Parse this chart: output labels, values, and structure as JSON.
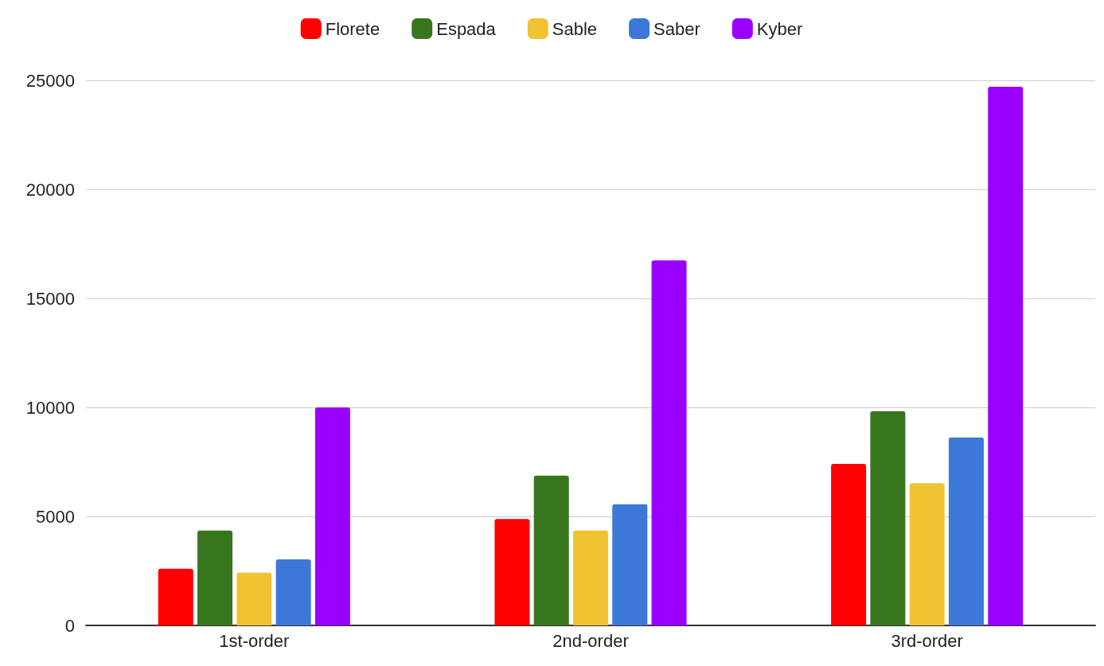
{
  "chart_data": {
    "type": "bar",
    "categories": [
      "1st-order",
      "2nd-order",
      "3rd-order"
    ],
    "series": [
      {
        "name": "Florete",
        "color": "#ff0000",
        "values": [
          2600,
          4880,
          7410
        ]
      },
      {
        "name": "Espada",
        "color": "#38761d",
        "values": [
          4350,
          6870,
          9830
        ]
      },
      {
        "name": "Sable",
        "color": "#f1c232",
        "values": [
          2420,
          4350,
          6520
        ]
      },
      {
        "name": "Saber",
        "color": "#3c78d8",
        "values": [
          3030,
          5560,
          8620
        ]
      },
      {
        "name": "Kyber",
        "color": "#9900ff",
        "values": [
          10000,
          16740,
          24710
        ]
      }
    ],
    "ylim": [
      0,
      25000
    ],
    "yticks": [
      0,
      5000,
      10000,
      15000,
      20000,
      25000
    ],
    "grid": "y",
    "legend": "top"
  }
}
